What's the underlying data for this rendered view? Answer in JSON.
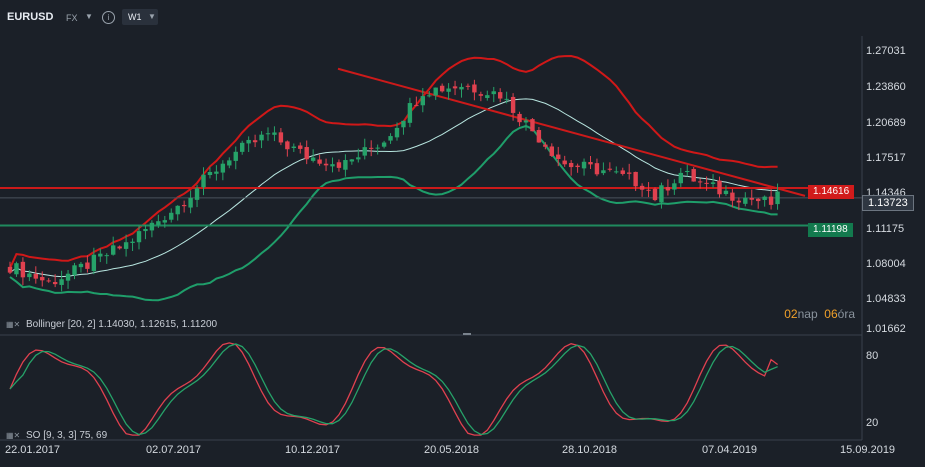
{
  "header": {
    "symbol": "EURUSD",
    "market": "FX",
    "timeframe": "W1"
  },
  "price_axis": [
    "1.27031",
    "1.23860",
    "1.20689",
    "1.17517",
    "1.14346",
    "1.11175",
    "1.08004",
    "1.04833",
    "1.01662"
  ],
  "tags": {
    "resistance": "1.14616",
    "current": "1.13723",
    "support": "1.11198"
  },
  "bollinger_legend": "Bollinger  [20, 2]  1.14030,  1.12615,  1.11200",
  "stochastic_legend": "SO [9, 3, 3] 75, 69",
  "stochastic_axis": [
    "80",
    "20"
  ],
  "countdown": {
    "n1": "02",
    "t1": "nap",
    "n2": "06",
    "t2": "óra"
  },
  "date_axis": [
    "22.01.2017",
    "02.07.2017",
    "10.12.2017",
    "20.05.2018",
    "28.10.2018",
    "07.04.2019",
    "15.09.2019"
  ],
  "colors": {
    "background": "#1b2028",
    "bull": "#26a269",
    "bear": "#e0414f",
    "resistance": "#cc1a1a",
    "support": "#1f8a5e",
    "upper_band": "#d01818",
    "lower_band": "#1f9e6a",
    "middle_band": "#b8e6e0",
    "countdown": "#f0a02a"
  }
}
